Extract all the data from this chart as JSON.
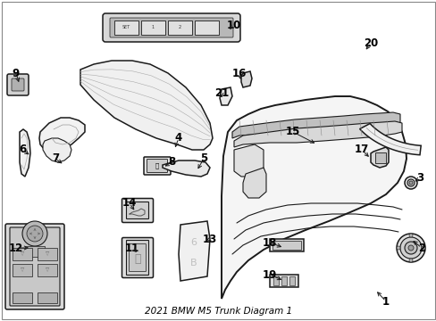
{
  "title": "2021 BMW M5 Trunk Diagram 1",
  "bg_color": "#ffffff",
  "line_color": "#1a1a1a",
  "label_color": "#000000",
  "font_size": 8.5,
  "figsize": [
    4.89,
    3.6
  ],
  "dpi": 100,
  "labels": {
    "1": [
      432,
      338,
      420,
      325
    ],
    "2": [
      472,
      278,
      460,
      268
    ],
    "3": [
      470,
      200,
      462,
      205
    ],
    "4": [
      200,
      155,
      195,
      168
    ],
    "5": [
      228,
      178,
      220,
      192
    ],
    "6": [
      25,
      168,
      35,
      175
    ],
    "7": [
      62,
      178,
      72,
      185
    ],
    "8": [
      192,
      182,
      182,
      188
    ],
    "9": [
      18,
      82,
      22,
      95
    ],
    "10": [
      262,
      28,
      255,
      35
    ],
    "11": [
      148,
      278,
      155,
      285
    ],
    "12": [
      18,
      278,
      35,
      278
    ],
    "13": [
      235,
      268,
      228,
      270
    ],
    "14": [
      145,
      228,
      152,
      238
    ],
    "15": [
      328,
      148,
      355,
      162
    ],
    "16": [
      268,
      82,
      270,
      92
    ],
    "17": [
      405,
      168,
      415,
      178
    ],
    "18": [
      302,
      272,
      318,
      278
    ],
    "19": [
      302,
      308,
      318,
      315
    ],
    "20": [
      415,
      48,
      408,
      58
    ],
    "21": [
      248,
      105,
      248,
      112
    ]
  }
}
